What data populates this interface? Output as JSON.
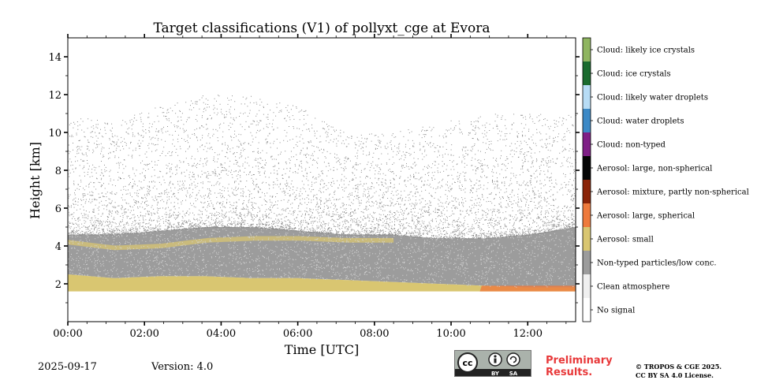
{
  "chart_data": {
    "type": "heatmap",
    "title": "Target classifications (V1) of pollyxt_cge at Evora",
    "xlabel": "Time [UTC]",
    "ylabel": "Height [km]",
    "xlim_hours": [
      0,
      13.25
    ],
    "ylim_km": [
      0,
      15
    ],
    "x_ticks": [
      {
        "value": 0,
        "label": "00:00"
      },
      {
        "value": 2,
        "label": "02:00"
      },
      {
        "value": 4,
        "label": "04:00"
      },
      {
        "value": 6,
        "label": "06:00"
      },
      {
        "value": 8,
        "label": "08:00"
      },
      {
        "value": 10,
        "label": "10:00"
      },
      {
        "value": 12,
        "label": "12:00"
      }
    ],
    "y_ticks": [
      {
        "value": 2,
        "label": "2"
      },
      {
        "value": 4,
        "label": "4"
      },
      {
        "value": 6,
        "label": "6"
      },
      {
        "value": 8,
        "label": "8"
      },
      {
        "value": 10,
        "label": "10"
      },
      {
        "value": 12,
        "label": "12"
      },
      {
        "value": 14,
        "label": "14"
      }
    ],
    "colorbar": [
      {
        "label": "Cloud: likely ice crystals",
        "color": "#8fb560"
      },
      {
        "label": "Cloud: ice crystals",
        "color": "#1a6b2e"
      },
      {
        "label": "Cloud: likely water droplets",
        "color": "#b7dcf5"
      },
      {
        "label": "Cloud: water droplets",
        "color": "#3c89c6"
      },
      {
        "label": "Cloud: non-typed",
        "color": "#7f1f86"
      },
      {
        "label": "Aerosol: large, non-spherical",
        "color": "#050505"
      },
      {
        "label": "Aerosol: mixture, partly non-spherical",
        "color": "#8a2408"
      },
      {
        "label": "Aerosol: large, spherical",
        "color": "#ee7a3c"
      },
      {
        "label": "Aerosol: small",
        "color": "#d9c671"
      },
      {
        "label": "Non-typed particles/low conc.",
        "color": "#9c9c9c"
      },
      {
        "label": "Clean atmosphere",
        "color": "#f0f0f0"
      },
      {
        "label": "No signal",
        "color": "#ffffff"
      }
    ],
    "layers": {
      "aerosol_small_base_km": 1.6,
      "aerosol_small_top_km": [
        2.5,
        2.3,
        2.4,
        2.4,
        2.3,
        2.3,
        2.2,
        2.1,
        2.0,
        1.9,
        1.8,
        1.8
      ],
      "upper_aerosol_small_band_km": [
        4.2,
        3.9,
        4.0,
        4.3,
        4.4,
        4.4,
        4.3,
        4.3
      ],
      "non_typed_top_km": [
        4.6,
        4.6,
        4.8,
        5.0,
        5.0,
        4.8,
        4.6,
        4.6,
        4.4,
        4.4,
        4.6,
        5.0
      ],
      "scatter_max_km": [
        9.5,
        9.0,
        10.0,
        10.5,
        10.5,
        10.0,
        8.5,
        8.5,
        9.0,
        9.5,
        9.5,
        9.5
      ]
    }
  },
  "footer": {
    "date": "2025-09-17",
    "version": "Version: 4.0",
    "preliminary_line1": "Preliminary",
    "preliminary_line2": "Results.",
    "copyright_line1": "© TROPOS & CGE 2025.",
    "copyright_line2": "CC BY SA 4.0 License.",
    "license_badge": {
      "cc": "cc",
      "by": "BY",
      "sa": "SA"
    }
  }
}
